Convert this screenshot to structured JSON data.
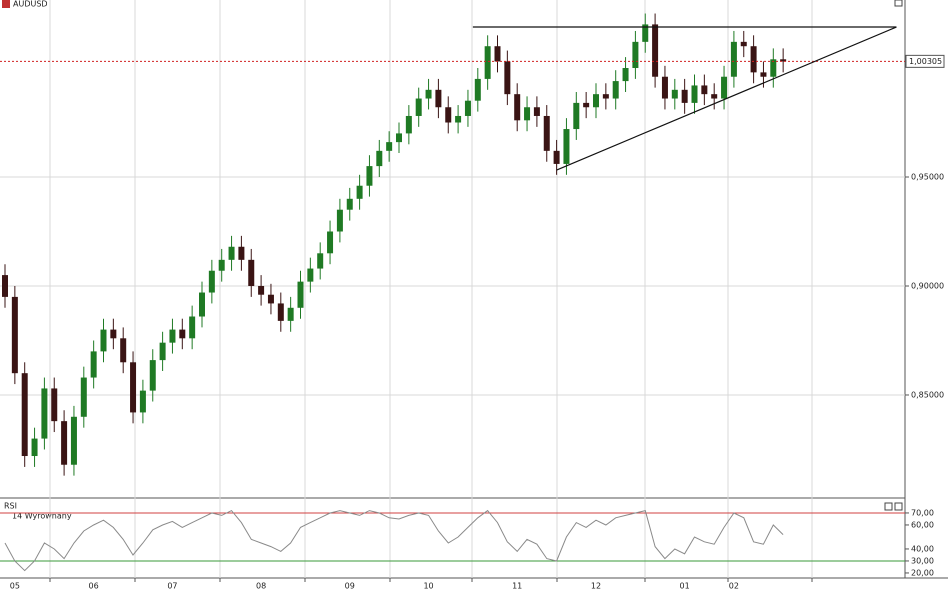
{
  "chart_data": [
    {
      "type": "candlestick",
      "title": "AUDUSD",
      "up_color": "#1f7a24",
      "down_color": "#3a1414",
      "categories": [
        null,
        "05",
        null,
        null,
        null,
        null,
        null,
        null,
        null,
        "06",
        null,
        null,
        null,
        null,
        null,
        null,
        null,
        "07",
        null,
        null,
        null,
        null,
        null,
        null,
        null,
        null,
        "08",
        null,
        null,
        null,
        null,
        null,
        null,
        null,
        null,
        "09",
        null,
        null,
        null,
        null,
        null,
        null,
        null,
        "10",
        null,
        null,
        null,
        null,
        null,
        null,
        null,
        null,
        "11",
        null,
        null,
        null,
        null,
        null,
        null,
        null,
        "12",
        null,
        null,
        null,
        null,
        null,
        null,
        null,
        null,
        "01",
        null,
        null,
        null,
        null,
        "02",
        null,
        null,
        null,
        null,
        null
      ],
      "open": [
        0.905,
        0.895,
        0.86,
        0.822,
        0.83,
        0.853,
        0.838,
        0.818,
        0.84,
        0.858,
        0.87,
        0.88,
        0.876,
        0.865,
        0.842,
        0.852,
        0.866,
        0.874,
        0.88,
        0.876,
        0.886,
        0.897,
        0.907,
        0.912,
        0.918,
        0.912,
        0.9,
        0.896,
        0.892,
        0.884,
        0.89,
        0.902,
        0.908,
        0.915,
        0.925,
        0.935,
        0.94,
        0.946,
        0.955,
        0.962,
        0.966,
        0.97,
        0.978,
        0.986,
        0.99,
        0.982,
        0.975,
        0.978,
        0.985,
        0.995,
        1.01,
        1.003,
        0.988,
        0.976,
        0.982,
        0.978,
        0.962,
        0.956,
        0.972,
        0.984,
        0.982,
        0.988,
        0.986,
        0.994,
        1.0,
        1.012,
        1.02,
        0.996,
        0.986,
        0.99,
        0.984,
        0.992,
        0.988,
        0.986,
        0.996,
        1.012,
        1.01,
        0.998,
        0.996,
        1.004
      ],
      "high": [
        0.91,
        0.9,
        0.865,
        0.835,
        0.858,
        0.858,
        0.843,
        0.845,
        0.863,
        0.875,
        0.885,
        0.885,
        0.881,
        0.87,
        0.857,
        0.871,
        0.879,
        0.885,
        0.885,
        0.891,
        0.902,
        0.912,
        0.917,
        0.923,
        0.923,
        0.917,
        0.905,
        0.901,
        0.897,
        0.895,
        0.907,
        0.913,
        0.92,
        0.93,
        0.94,
        0.945,
        0.951,
        0.96,
        0.967,
        0.971,
        0.975,
        0.983,
        0.991,
        0.995,
        0.995,
        0.987,
        0.983,
        0.99,
        1.0,
        1.015,
        1.015,
        1.008,
        0.993,
        0.987,
        0.987,
        0.983,
        0.967,
        0.977,
        0.989,
        0.989,
        0.993,
        0.993,
        0.999,
        1.005,
        1.017,
        1.025,
        1.025,
        1.001,
        0.995,
        0.995,
        0.997,
        0.997,
        0.993,
        1.001,
        1.017,
        1.017,
        1.015,
        1.003,
        1.009,
        1.009
      ],
      "low": [
        0.89,
        0.855,
        0.817,
        0.817,
        0.825,
        0.833,
        0.813,
        0.813,
        0.835,
        0.853,
        0.865,
        0.871,
        0.86,
        0.837,
        0.837,
        0.847,
        0.861,
        0.869,
        0.871,
        0.871,
        0.881,
        0.892,
        0.902,
        0.907,
        0.907,
        0.895,
        0.891,
        0.887,
        0.879,
        0.879,
        0.885,
        0.897,
        0.903,
        0.91,
        0.92,
        0.93,
        0.935,
        0.941,
        0.95,
        0.957,
        0.961,
        0.965,
        0.973,
        0.981,
        0.977,
        0.97,
        0.97,
        0.973,
        0.98,
        0.99,
        0.998,
        0.983,
        0.971,
        0.971,
        0.973,
        0.957,
        0.951,
        0.951,
        0.967,
        0.977,
        0.977,
        0.981,
        0.981,
        0.989,
        0.995,
        1.007,
        0.991,
        0.981,
        0.981,
        0.979,
        0.979,
        0.983,
        0.981,
        0.981,
        0.991,
        1.005,
        0.993,
        0.991,
        0.991,
        0.998
      ],
      "close": [
        0.895,
        0.86,
        0.822,
        0.83,
        0.853,
        0.838,
        0.818,
        0.84,
        0.858,
        0.87,
        0.88,
        0.876,
        0.865,
        0.842,
        0.852,
        0.866,
        0.874,
        0.88,
        0.876,
        0.886,
        0.897,
        0.907,
        0.912,
        0.918,
        0.912,
        0.9,
        0.896,
        0.892,
        0.884,
        0.89,
        0.902,
        0.908,
        0.915,
        0.925,
        0.935,
        0.94,
        0.946,
        0.955,
        0.962,
        0.966,
        0.97,
        0.978,
        0.986,
        0.99,
        0.982,
        0.975,
        0.978,
        0.985,
        0.995,
        1.01,
        1.003,
        0.988,
        0.976,
        0.982,
        0.978,
        0.962,
        0.956,
        0.972,
        0.984,
        0.982,
        0.988,
        0.986,
        0.994,
        1.0,
        1.012,
        1.02,
        0.996,
        0.986,
        0.99,
        0.984,
        0.992,
        0.988,
        0.986,
        0.996,
        1.012,
        1.01,
        0.998,
        0.996,
        1.004,
        1.003
      ],
      "ylim": [
        0.8032,
        1.0312
      ],
      "yticks": [
        {
          "value": 0.95,
          "label": "0,95000"
        },
        {
          "value": 0.9,
          "label": "0,90000"
        },
        {
          "value": 0.85,
          "label": "0,85000"
        }
      ],
      "grid": true,
      "last_price": {
        "value": 1.00305,
        "label": "1,00305",
        "color": "#d02020"
      },
      "trendlines": [
        {
          "x": [
            47.5,
            90.5
          ],
          "y": [
            1.0188,
            1.0188
          ]
        },
        {
          "x": [
            56,
            90.5
          ],
          "y": [
            0.9532,
            1.0188
          ]
        }
      ]
    },
    {
      "type": "line",
      "title": "RSI",
      "subtitle": "14 Wyrownany",
      "series": [
        {
          "name": "RSI",
          "color": "#8a8a8a",
          "values": [
            45,
            30,
            22,
            30,
            45,
            40,
            32,
            45,
            55,
            60,
            64,
            58,
            48,
            35,
            45,
            56,
            60,
            63,
            58,
            62,
            66,
            70,
            68,
            72,
            62,
            48,
            45,
            42,
            38,
            45,
            58,
            62,
            66,
            70,
            72,
            70,
            68,
            72,
            70,
            66,
            65,
            68,
            70,
            68,
            55,
            45,
            50,
            58,
            66,
            72,
            62,
            46,
            38,
            48,
            44,
            32,
            30,
            50,
            62,
            58,
            64,
            60,
            66,
            68,
            70,
            72,
            42,
            32,
            40,
            36,
            50,
            46,
            44,
            58,
            70,
            66,
            46,
            44,
            60,
            52
          ]
        }
      ],
      "ylim": [
        15.8,
        80.8
      ],
      "yticks": [
        {
          "value": 70,
          "label": "70,00"
        },
        {
          "value": 60,
          "label": "60,00"
        },
        {
          "value": 40,
          "label": "40,00"
        },
        {
          "value": 30,
          "label": "30,00"
        },
        {
          "value": 20,
          "label": "20,00"
        }
      ],
      "levels": [
        {
          "value": 70,
          "color": "#d04040"
        },
        {
          "value": 30,
          "color": "#3a9a3a"
        }
      ]
    }
  ]
}
